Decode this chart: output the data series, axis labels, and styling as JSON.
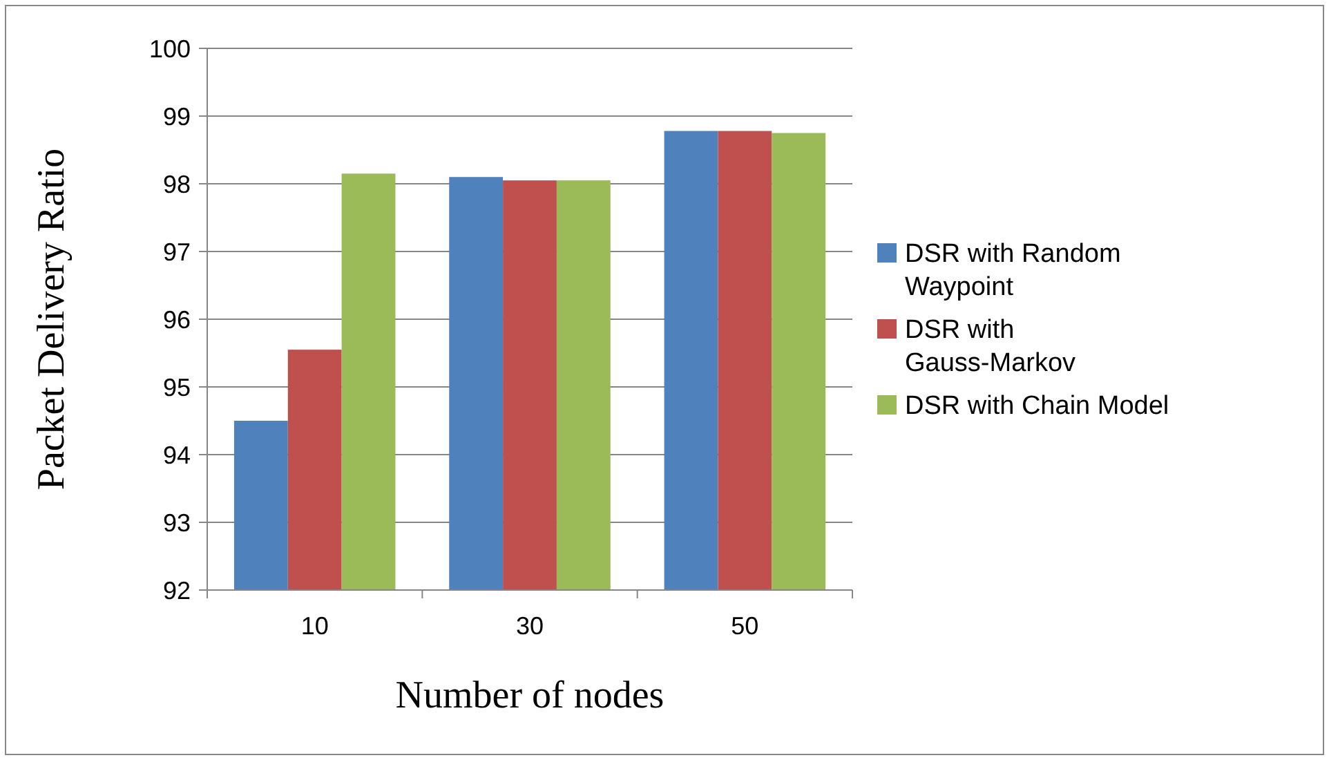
{
  "chart_data": {
    "type": "bar",
    "xlabel": "Number of nodes",
    "ylabel": "Packet Delivery Ratio",
    "categories": [
      "10",
      "30",
      "50"
    ],
    "series": [
      {
        "name": "DSR with Random Waypoint",
        "color": "#4f81bd",
        "values": [
          94.5,
          98.1,
          98.78
        ]
      },
      {
        "name": "DSR with Gauss-Markov",
        "color": "#c0504d",
        "values": [
          95.55,
          98.05,
          98.78
        ]
      },
      {
        "name": "DSR with Chain Model",
        "color": "#9bbb59",
        "values": [
          98.15,
          98.05,
          98.75
        ]
      }
    ],
    "ylim": [
      92,
      100
    ],
    "yticks": [
      92,
      93,
      94,
      95,
      96,
      97,
      98,
      99,
      100
    ],
    "grid": "y",
    "legend": "right"
  }
}
